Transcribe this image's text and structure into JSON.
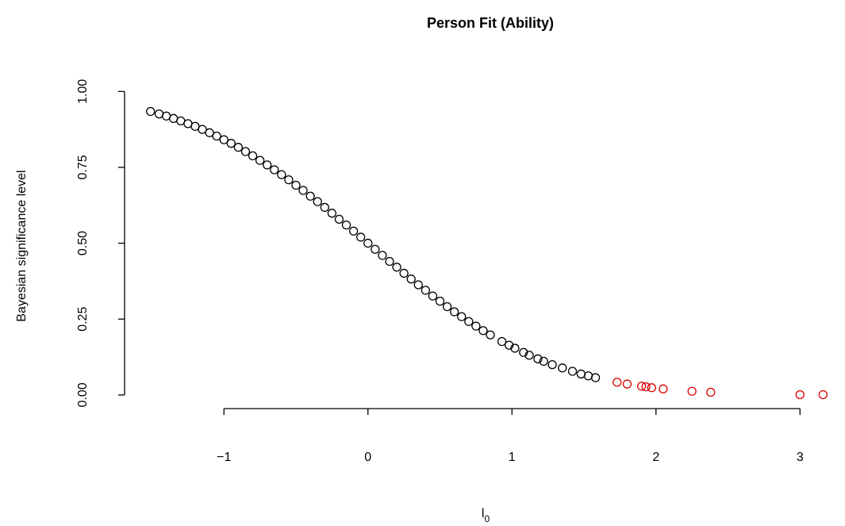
{
  "chart_data": {
    "type": "scatter",
    "title": "Person Fit (Ability)",
    "x_label": "l",
    "x_label_sub": "0",
    "y_label": "Bayesian significance level",
    "xlim": [
      -1.69,
      3.34
    ],
    "ylim": [
      -0.037,
      0.972
    ],
    "xticks": [
      {
        "value": -1,
        "label": "−1"
      },
      0,
      1,
      2,
      3
    ],
    "yticks": [
      {
        "value": 0,
        "label": "0.00"
      },
      {
        "value": 0.25,
        "label": "0.25"
      },
      {
        "value": 0.5,
        "label": "0.50"
      },
      {
        "value": 0.75,
        "label": "0.75"
      },
      {
        "value": 1,
        "label": "1.00"
      }
    ],
    "grid": false,
    "series": [
      {
        "color": "#000000",
        "x": [
          -1.51,
          -1.45,
          -1.4,
          -1.35,
          -1.3,
          -1.25,
          -1.2,
          -1.15,
          -1.1,
          -1.05,
          -1.0,
          -0.95,
          -0.9,
          -0.85,
          -0.8,
          -0.75,
          -0.7,
          -0.65,
          -0.6,
          -0.55,
          -0.5,
          -0.45,
          -0.4,
          -0.35,
          -0.3,
          -0.25,
          -0.2,
          -0.15,
          -0.1,
          -0.05,
          0.0,
          0.05,
          0.1,
          0.15,
          0.2,
          0.25,
          0.3,
          0.35,
          0.4,
          0.45,
          0.5,
          0.55,
          0.6,
          0.65,
          0.7,
          0.75,
          0.8,
          0.85,
          0.93,
          0.98,
          1.02,
          1.08,
          1.12,
          1.18,
          1.22,
          1.28,
          1.35,
          1.42,
          1.48,
          1.53,
          1.58
        ],
        "values": [
          0.934,
          0.926,
          0.919,
          0.911,
          0.903,
          0.894,
          0.885,
          0.875,
          0.864,
          0.853,
          0.841,
          0.829,
          0.816,
          0.802,
          0.788,
          0.773,
          0.758,
          0.742,
          0.726,
          0.709,
          0.691,
          0.674,
          0.655,
          0.637,
          0.618,
          0.599,
          0.579,
          0.56,
          0.54,
          0.52,
          0.5,
          0.48,
          0.46,
          0.44,
          0.421,
          0.401,
          0.382,
          0.363,
          0.345,
          0.326,
          0.309,
          0.291,
          0.274,
          0.258,
          0.242,
          0.227,
          0.212,
          0.198,
          0.176,
          0.164,
          0.154,
          0.14,
          0.131,
          0.119,
          0.111,
          0.1,
          0.089,
          0.078,
          0.069,
          0.063,
          0.057
        ]
      },
      {
        "color": "#dd0000",
        "x": [
          1.73,
          1.8,
          1.9,
          1.93,
          1.97,
          2.05,
          2.25,
          2.38,
          3.0,
          3.16
        ],
        "values": [
          0.042,
          0.036,
          0.029,
          0.027,
          0.024,
          0.02,
          0.012,
          0.009,
          0.001,
          0.001
        ]
      }
    ]
  }
}
